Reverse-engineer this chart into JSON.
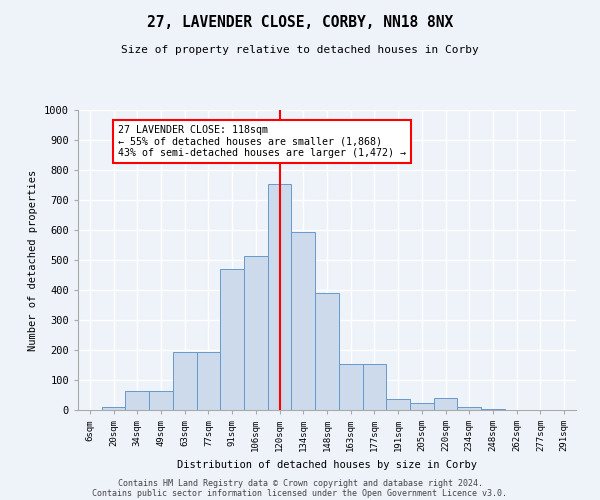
{
  "title": "27, LAVENDER CLOSE, CORBY, NN18 8NX",
  "subtitle": "Size of property relative to detached houses in Corby",
  "xlabel": "Distribution of detached houses by size in Corby",
  "ylabel": "Number of detached properties",
  "categories": [
    "6sqm",
    "20sqm",
    "34sqm",
    "49sqm",
    "63sqm",
    "77sqm",
    "91sqm",
    "106sqm",
    "120sqm",
    "134sqm",
    "148sqm",
    "163sqm",
    "177sqm",
    "191sqm",
    "205sqm",
    "220sqm",
    "234sqm",
    "248sqm",
    "262sqm",
    "277sqm",
    "291sqm"
  ],
  "bar_values": [
    0,
    10,
    63,
    63,
    195,
    195,
    470,
    515,
    755,
    595,
    390,
    155,
    155,
    37,
    22,
    40,
    10,
    3,
    0,
    0,
    0
  ],
  "bar_color": "#ccdaec",
  "bar_edge_color": "#6699cc",
  "vline_idx": 8,
  "vline_color": "red",
  "annotation_text": "27 LAVENDER CLOSE: 118sqm\n← 55% of detached houses are smaller (1,868)\n43% of semi-detached houses are larger (1,472) →",
  "ylim": [
    0,
    1000
  ],
  "yticks": [
    0,
    100,
    200,
    300,
    400,
    500,
    600,
    700,
    800,
    900,
    1000
  ],
  "footer1": "Contains HM Land Registry data © Crown copyright and database right 2024.",
  "footer2": "Contains public sector information licensed under the Open Government Licence v3.0.",
  "bg_color": "#eef3fa",
  "grid_color": "#ffffff"
}
